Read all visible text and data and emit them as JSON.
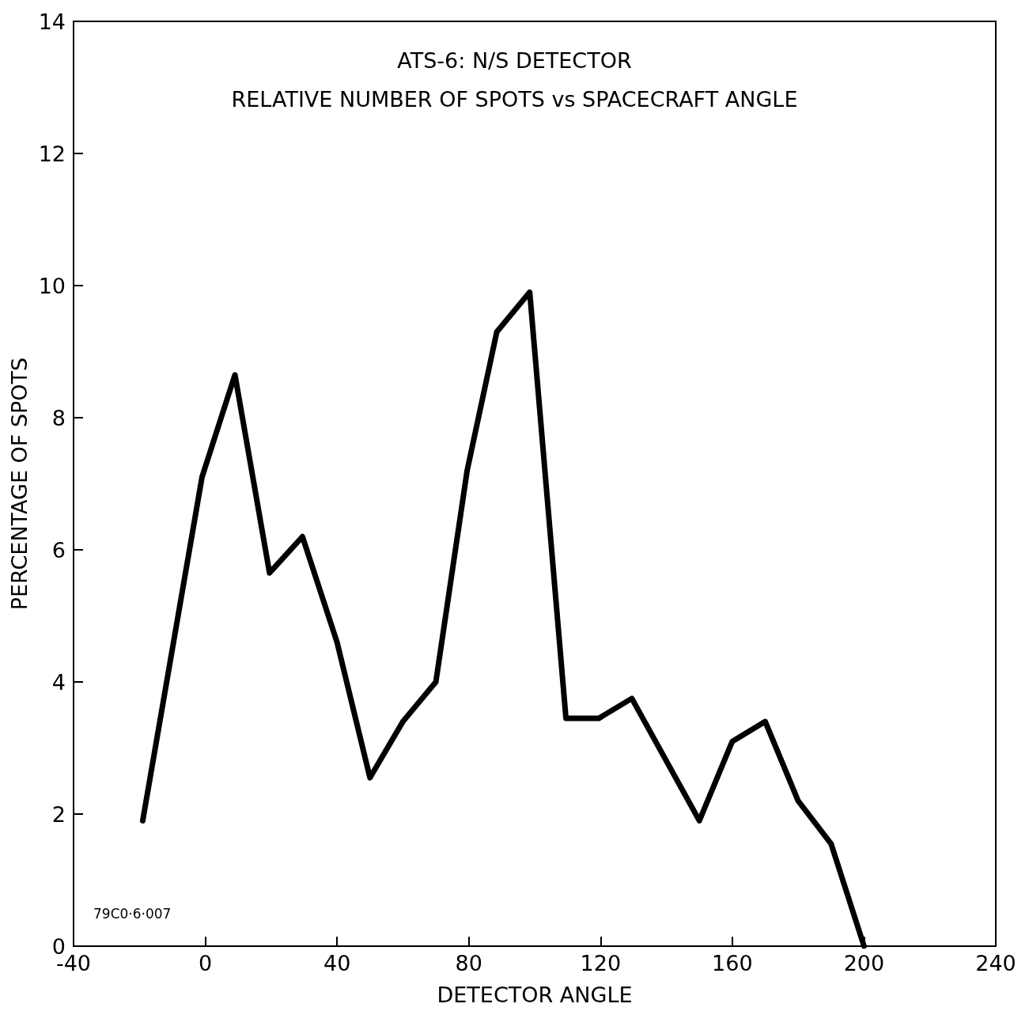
{
  "chart_data": {
    "type": "line",
    "title": "ATS-6: N/S DETECTOR",
    "subtitle": "RELATIVE NUMBER OF SPOTS vs SPACECRAFT ANGLE",
    "xlabel": "DETECTOR ANGLE",
    "ylabel": "PERCENTAGE OF SPOTS",
    "x": [
      -19,
      -1,
      9,
      19.5,
      29.5,
      40,
      50,
      60,
      70,
      79.5,
      88.5,
      98.5,
      109.5,
      119.5,
      129.5,
      150,
      160,
      170,
      180,
      190,
      200
    ],
    "series": [
      {
        "color": "#000000",
        "values": [
          1.9,
          7.1,
          8.65,
          5.65,
          6.2,
          4.6,
          2.55,
          3.4,
          4.0,
          7.2,
          9.3,
          9.9,
          3.45,
          3.45,
          3.75,
          1.9,
          3.1,
          3.4,
          2.2,
          1.55,
          0
        ]
      }
    ],
    "xlim": [
      -40,
      240
    ],
    "xticks": [
      -40,
      0,
      40,
      80,
      120,
      160,
      200,
      240
    ],
    "ylim": [
      0,
      14
    ],
    "yticks": [
      0,
      2,
      4,
      6,
      8,
      10,
      12,
      14
    ],
    "grid": false,
    "marker": "none",
    "line_style": "solid",
    "annotations": [
      "79C0·6·007"
    ]
  }
}
